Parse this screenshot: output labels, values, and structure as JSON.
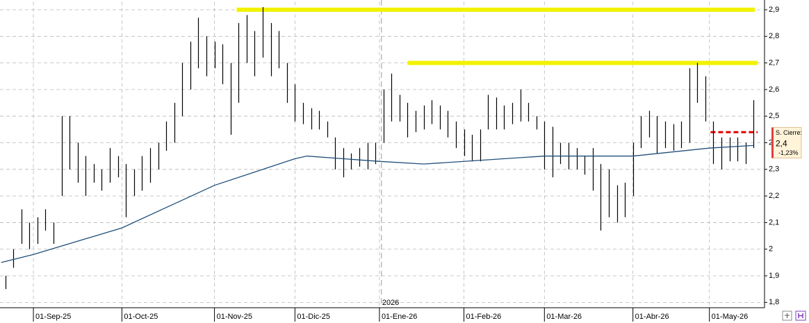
{
  "chart_data": {
    "type": "ohlc",
    "bars": {
      "color": "#000000",
      "x": [
        -7,
        -5,
        -3,
        -1,
        1,
        3,
        5,
        7,
        9,
        11,
        13,
        15,
        17,
        19,
        21,
        23,
        25,
        27,
        29,
        31,
        33,
        35,
        37,
        39,
        41,
        43,
        45,
        47,
        49,
        51,
        53,
        55,
        57,
        59,
        61,
        63,
        65,
        67,
        69,
        71,
        73,
        75,
        77,
        79,
        81,
        83,
        85,
        87,
        89,
        91,
        93,
        95,
        97,
        99,
        101,
        103,
        105,
        107,
        109,
        111,
        113,
        115,
        117,
        119,
        121,
        123,
        125,
        127,
        129,
        131,
        133,
        135,
        137,
        139,
        141,
        143,
        145,
        147,
        149,
        151,
        153,
        155,
        157,
        159,
        161,
        163,
        165,
        167,
        169,
        171,
        173,
        175,
        177,
        179
      ],
      "high": [
        1.9,
        2.0,
        2.15,
        2.1,
        2.12,
        2.15,
        2.1,
        2.5,
        2.5,
        2.4,
        2.35,
        2.32,
        2.3,
        2.38,
        2.35,
        2.32,
        2.3,
        2.35,
        2.38,
        2.4,
        2.48,
        2.55,
        2.7,
        2.78,
        2.87,
        2.8,
        2.78,
        2.77,
        2.7,
        2.85,
        2.88,
        2.82,
        2.91,
        2.85,
        2.82,
        2.7,
        2.62,
        2.55,
        2.53,
        2.52,
        2.48,
        2.42,
        2.38,
        2.36,
        2.38,
        2.4,
        2.4,
        2.6,
        2.66,
        2.58,
        2.55,
        2.52,
        2.54,
        2.56,
        2.54,
        2.52,
        2.48,
        2.45,
        2.43,
        2.45,
        2.58,
        2.57,
        2.54,
        2.55,
        2.6,
        2.55,
        2.5,
        2.48,
        2.46,
        2.4,
        2.4,
        2.38,
        2.35,
        2.38,
        2.32,
        2.3,
        2.24,
        2.25,
        2.4,
        2.5,
        2.52,
        2.5,
        2.48,
        2.47,
        2.48,
        2.68,
        2.7,
        2.65,
        2.48,
        2.42,
        2.42,
        2.42,
        2.4,
        2.56
      ],
      "low": [
        1.85,
        1.93,
        2.02,
        2.0,
        2.02,
        2.07,
        2.02,
        2.2,
        2.3,
        2.25,
        2.2,
        2.25,
        2.22,
        2.25,
        2.27,
        2.12,
        2.2,
        2.22,
        2.25,
        2.3,
        2.37,
        2.4,
        2.5,
        2.6,
        2.68,
        2.65,
        2.68,
        2.62,
        2.43,
        2.55,
        2.7,
        2.65,
        2.72,
        2.65,
        2.68,
        2.55,
        2.48,
        2.47,
        2.45,
        2.45,
        2.42,
        2.3,
        2.27,
        2.3,
        2.31,
        2.3,
        2.32,
        2.4,
        2.48,
        2.48,
        2.42,
        2.44,
        2.45,
        2.47,
        2.45,
        2.42,
        2.38,
        2.35,
        2.33,
        2.33,
        2.45,
        2.45,
        2.45,
        2.47,
        2.48,
        2.48,
        2.45,
        2.3,
        2.27,
        2.32,
        2.3,
        2.3,
        2.28,
        2.22,
        2.07,
        2.12,
        2.1,
        2.12,
        2.2,
        2.38,
        2.42,
        2.36,
        2.38,
        2.37,
        2.38,
        2.4,
        2.55,
        2.48,
        2.32,
        2.3,
        2.33,
        2.33,
        2.32,
        2.38
      ]
    },
    "moving_average": {
      "color": "#1f4e79",
      "x": [
        -8,
        0,
        22,
        45,
        65,
        68,
        86,
        97,
        127,
        149,
        168,
        179
      ],
      "values": [
        1.95,
        1.98,
        2.08,
        2.24,
        2.34,
        2.35,
        2.33,
        2.32,
        2.35,
        2.35,
        2.38,
        2.39
      ]
    },
    "hlines": [
      {
        "value": 2.9,
        "x": [
          50.5,
          179.3
        ],
        "color": "#f2f200",
        "style": "solid"
      },
      {
        "value": 2.7,
        "x": [
          93,
          180
        ],
        "color": "#f2f200",
        "style": "solid"
      },
      {
        "value": 2.44,
        "x": [
          168.3,
          180
        ],
        "color": "#e00000",
        "style": "dashed"
      }
    ],
    "year_marker": {
      "x": 86.5,
      "label": "2026"
    },
    "last_close": {
      "title": "S. Cierre:",
      "value": 2.4,
      "value_label": "2,4",
      "change": -1.23,
      "change_label": "-1,23%"
    },
    "xlim": [
      -8.3,
      181.7
    ],
    "xticks": [
      {
        "value": 0,
        "label": "01-Sep-25"
      },
      {
        "value": 22,
        "label": "01-Oct-25"
      },
      {
        "value": 45,
        "label": "01-Nov-25"
      },
      {
        "value": 65,
        "label": "01-Dic-25"
      },
      {
        "value": 86,
        "label": "01-Ene-26"
      },
      {
        "value": 107,
        "label": "01-Feb-26"
      },
      {
        "value": 127,
        "label": "01-Mar-26"
      },
      {
        "value": 149,
        "label": "01-Abr-26"
      },
      {
        "value": 168,
        "label": "01-May-26"
      }
    ],
    "ylim": [
      1.78,
      2.93
    ],
    "yticks": [
      {
        "value": 1.8,
        "label": "1,8"
      },
      {
        "value": 1.9,
        "label": "1,9"
      },
      2,
      {
        "value": 2.1,
        "label": "2,1"
      },
      {
        "value": 2.2,
        "label": "2,2"
      },
      {
        "value": 2.3,
        "label": "2,3"
      },
      {
        "value": 2.4,
        "label": "2,4"
      },
      {
        "value": 2.5,
        "label": "2,5"
      },
      {
        "value": 2.6,
        "label": "2,6"
      },
      {
        "value": 2.7,
        "label": "2,7"
      },
      {
        "value": 2.8,
        "label": "2,8"
      },
      {
        "value": 2.9,
        "label": "2,9"
      }
    ],
    "grid": true
  }
}
